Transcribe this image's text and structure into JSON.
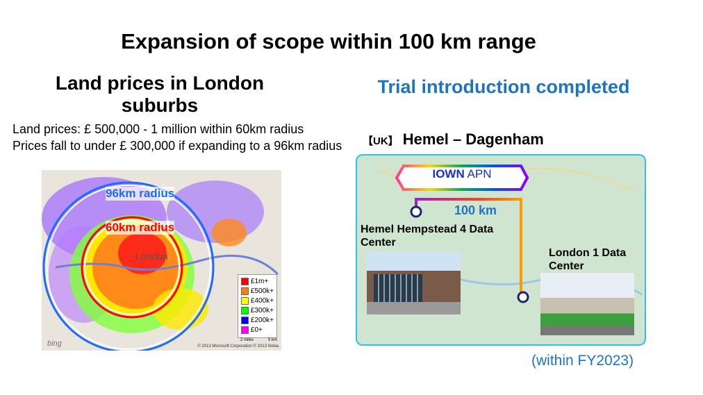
{
  "title": "Expansion of scope within 100 km range",
  "left": {
    "heading": "Land prices in London suburbs",
    "desc_line1": "Land prices:  £ 500,000 - 1 million within 60km radius",
    "desc_line2": "Prices fall to under  £ 300,000 if expanding to a 96km radius",
    "map": {
      "outer_label": "96km radius",
      "inner_label": "60km radius",
      "city_label": "London",
      "legend": [
        {
          "label": "£1m+",
          "color": "#ff0000"
        },
        {
          "label": "£500k+",
          "color": "#ff7f00"
        },
        {
          "label": "£400k+",
          "color": "#ffff00"
        },
        {
          "label": "£300k+",
          "color": "#00ff00"
        },
        {
          "label": "£200k+",
          "color": "#0000ff"
        },
        {
          "label": "£0+",
          "color": "#ff00ff"
        }
      ],
      "scale_miles": "2 miles",
      "scale_km": "5 km",
      "copyright": "© 2013 Microsoft Corporation © 2013 Nokia",
      "logo": "bing"
    }
  },
  "right": {
    "heading": "Trial introduction completed",
    "region_tag": "【UK】",
    "route": "Hemel – Dagenham",
    "banner_bold": "IOWN",
    "banner_rest": " APN",
    "distance": "100 km",
    "site_a": "Hemel Hempstead 4 Data Center",
    "site_b": "London 1 Data Center",
    "note": "(within FY2023)"
  },
  "colors": {
    "accent": "#1f74c0",
    "panel_border": "#2bc4e6",
    "outer_circle": "#1a6cff",
    "inner_circle": "#ff0000"
  }
}
